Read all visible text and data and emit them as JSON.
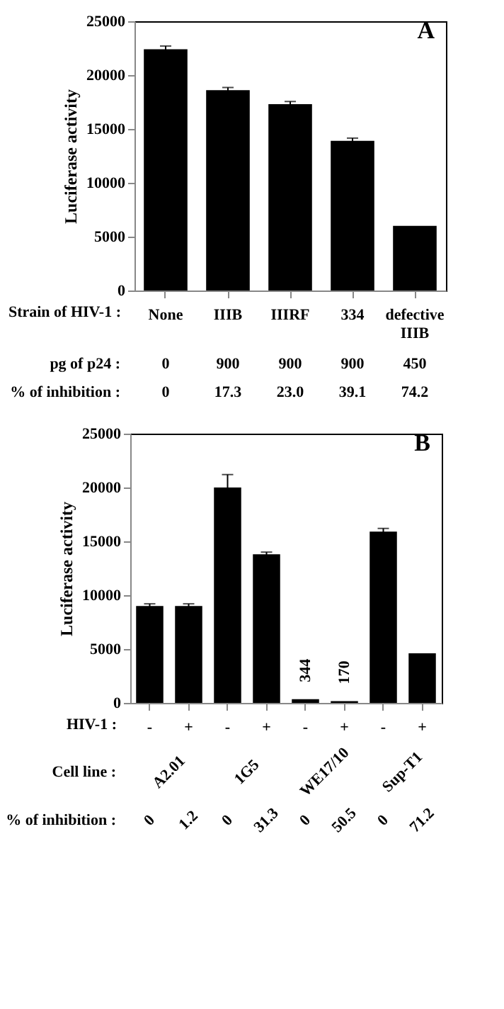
{
  "chart_data": [
    {
      "type": "bar",
      "title": "A",
      "ylabel": "Luciferase activity",
      "xlabel": "Strain of HIV-1 :",
      "categories": [
        "None",
        "IIIB",
        "IIIRF",
        "334",
        "defective IIIB"
      ],
      "values": [
        22400,
        18600,
        17300,
        13900,
        6000
      ],
      "errors": [
        300,
        250,
        250,
        250,
        null
      ],
      "color": "#000000",
      "ylim": [
        0,
        25000
      ],
      "yticks": [
        0,
        5000,
        10000,
        15000,
        20000,
        25000
      ],
      "annotations": [
        "pg of p24 :",
        "0",
        "900",
        "900",
        "900",
        "450",
        "% of inhibition :",
        "0",
        "17.3",
        "23.0",
        "39.1",
        "74.2"
      ]
    },
    {
      "type": "bar",
      "title": "B",
      "ylabel": "Luciferase activity",
      "xlabel": "HIV-1 :",
      "categories": [
        "-",
        "+",
        "-",
        "+",
        "-",
        "+",
        "-",
        "+"
      ],
      "values": [
        9000,
        9000,
        20000,
        13800,
        344,
        170,
        15900,
        4600
      ],
      "errors": [
        200,
        200,
        1200,
        200,
        null,
        null,
        300,
        null
      ],
      "value_labels": [
        null,
        null,
        null,
        null,
        "344",
        "170",
        null,
        null
      ],
      "color": "#000000",
      "ylim": [
        0,
        25000
      ],
      "yticks": [
        0,
        5000,
        10000,
        15000,
        20000,
        25000
      ],
      "annotations": [
        "Cell line :",
        "A2.01",
        "1G5",
        "WE17/10",
        "Sup-T1",
        "% of inhibition :",
        "0",
        "1.2",
        "0",
        "31.3",
        "0",
        "50.5",
        "0",
        "71.2"
      ]
    }
  ]
}
